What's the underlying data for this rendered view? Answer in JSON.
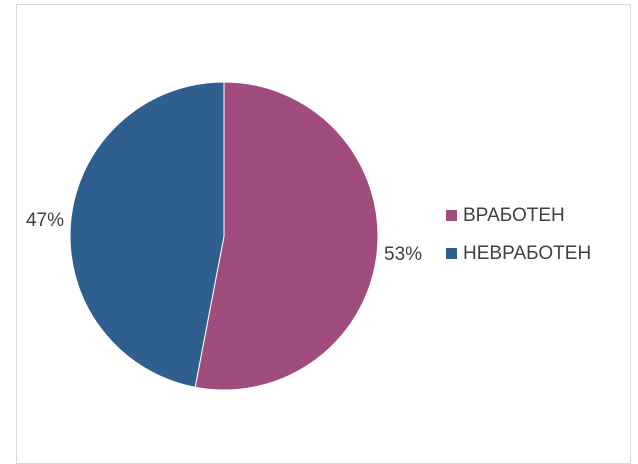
{
  "chart_data": {
    "type": "pie",
    "categories": [
      "ВРАБОТЕН",
      "НЕВРАБОТЕН"
    ],
    "values": [
      53,
      47
    ],
    "data_labels": [
      "53%",
      "47%"
    ],
    "colors": [
      "#A04C7C",
      "#2E5F8F"
    ],
    "title": "",
    "legend_placement": "right",
    "start_angle_deg": 0,
    "direction": "clockwise"
  }
}
